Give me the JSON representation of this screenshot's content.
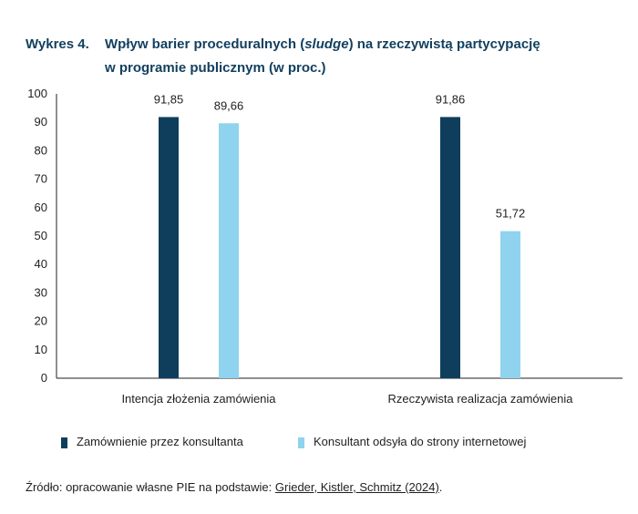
{
  "header": {
    "figure_number": "Wykres 4.",
    "title_before": "Wpływ barier proceduralnych (",
    "title_italic": "sludge",
    "title_after": ") na rzeczywistą partycypację",
    "title_line2": "w programie publicznym (w proc.)"
  },
  "chart_data": {
    "type": "bar",
    "categories": [
      "Intencja złożenia zamówienia",
      "Rzeczywista realizacja zamówienia"
    ],
    "series": [
      {
        "name": "Zamównienie przez konsultanta",
        "color": "#0f3e5c",
        "values": [
          91.85,
          91.86
        ],
        "labels": [
          "91,85",
          "91,86"
        ]
      },
      {
        "name": "Konsultant odsyła do strony internetowej",
        "color": "#8fd3ee",
        "values": [
          89.66,
          51.72
        ],
        "labels": [
          "89,66",
          "51,72"
        ]
      }
    ],
    "ylim": [
      0,
      100
    ],
    "yticks": [
      0,
      10,
      20,
      30,
      40,
      50,
      60,
      70,
      80,
      90,
      100
    ],
    "xlabel": "",
    "ylabel": "",
    "grid": false,
    "legend": "bottom"
  },
  "legend": {
    "items": [
      {
        "label": "Zamównienie przez konsultanta",
        "color": "#0f3e5c"
      },
      {
        "label": "Konsultant odsyła do strony internetowej",
        "color": "#8fd3ee"
      }
    ]
  },
  "source": {
    "prefix": "Źródło: opracowanie własne PIE na podstawie: ",
    "link": "Grieder, Kistler, Schmitz (2024)",
    "suffix": "."
  }
}
